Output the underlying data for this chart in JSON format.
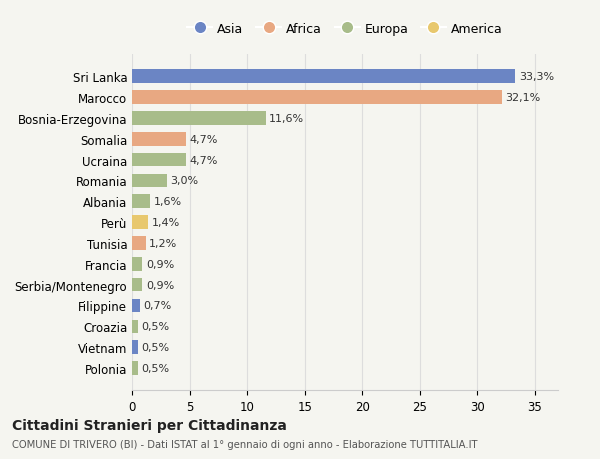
{
  "countries": [
    "Sri Lanka",
    "Marocco",
    "Bosnia-Erzegovina",
    "Somalia",
    "Ucraina",
    "Romania",
    "Albania",
    "Perù",
    "Tunisia",
    "Francia",
    "Serbia/Montenegro",
    "Filippine",
    "Croazia",
    "Vietnam",
    "Polonia"
  ],
  "values": [
    33.3,
    32.1,
    11.6,
    4.7,
    4.7,
    3.0,
    1.6,
    1.4,
    1.2,
    0.9,
    0.9,
    0.7,
    0.5,
    0.5,
    0.5
  ],
  "labels": [
    "33,3%",
    "32,1%",
    "11,6%",
    "4,7%",
    "4,7%",
    "3,0%",
    "1,6%",
    "1,4%",
    "1,2%",
    "0,9%",
    "0,9%",
    "0,7%",
    "0,5%",
    "0,5%",
    "0,5%"
  ],
  "continents": [
    "Asia",
    "Africa",
    "Europa",
    "Africa",
    "Europa",
    "Europa",
    "Europa",
    "America",
    "Africa",
    "Europa",
    "Europa",
    "Asia",
    "Europa",
    "Asia",
    "Europa"
  ],
  "colors": {
    "Asia": "#6b85c4",
    "Africa": "#e8a882",
    "Europa": "#a8bc8a",
    "America": "#e8c86e"
  },
  "legend_order": [
    "Asia",
    "Africa",
    "Europa",
    "America"
  ],
  "title": "Cittadini Stranieri per Cittadinanza",
  "subtitle": "COMUNE DI TRIVERO (BI) - Dati ISTAT al 1° gennaio di ogni anno - Elaborazione TUTTITALIA.IT",
  "bg_color": "#f5f5f0",
  "xlim": [
    0,
    37
  ],
  "xticks": [
    0,
    5,
    10,
    15,
    20,
    25,
    30,
    35
  ]
}
